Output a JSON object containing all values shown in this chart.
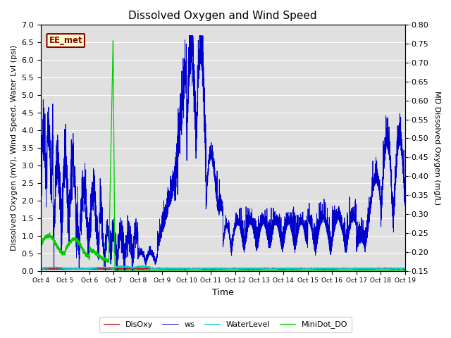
{
  "title": "Dissolved Oxygen and Wind Speed",
  "ylabel_left": "Dissolved Oxygen (mV), Wind Speed, Water Lvl (psi)",
  "ylabel_right": "MD Dissolved Oxygen (mg/L)",
  "xlabel": "Time",
  "station_label": "EE_met",
  "ylim_left": [
    0.0,
    7.0
  ],
  "ylim_right": [
    0.15,
    0.8
  ],
  "x_tick_labels": [
    "Oct 4",
    "Oct 5",
    "Oct 6",
    "Oct 7",
    "Oct 8",
    "Oct 9",
    "Oct 10",
    "Oct 11",
    "Oct 12",
    "Oct 13",
    "Oct 14",
    "Oct 15",
    "Oct 16",
    "Oct 17",
    "Oct 18",
    "Oct 19"
  ],
  "yticks_left": [
    0.0,
    0.5,
    1.0,
    1.5,
    2.0,
    2.5,
    3.0,
    3.5,
    4.0,
    4.5,
    5.0,
    5.5,
    6.0,
    6.5,
    7.0
  ],
  "yticks_right": [
    0.15,
    0.2,
    0.25,
    0.3,
    0.35,
    0.4,
    0.45,
    0.5,
    0.55,
    0.6,
    0.65,
    0.7,
    0.75,
    0.8
  ],
  "colors": {
    "DisOxy": "#cc0000",
    "ws": "#0000cc",
    "WaterLevel": "#00cccc",
    "MiniDot_DO": "#00cc00"
  },
  "background_color": "#e0e0e0",
  "grid_color": "#ffffff",
  "title_fontsize": 11,
  "label_fontsize": 8,
  "tick_fontsize": 8,
  "legend_fontsize": 8
}
